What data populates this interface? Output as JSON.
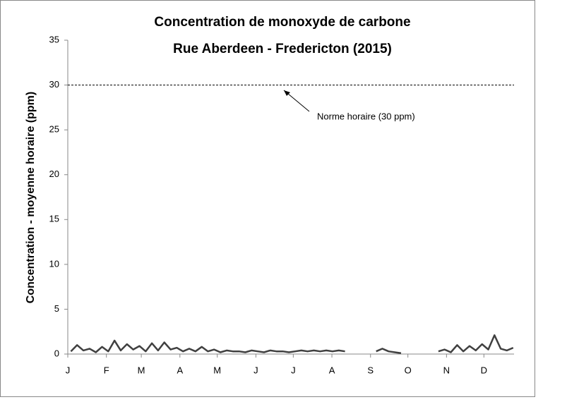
{
  "chart_data": {
    "type": "line",
    "title": [
      "Concentration de monoxyde de carbone",
      "Rue Aberdeen - Fredericton (2015)"
    ],
    "y_label": "Concentration - moyenne horaire (ppm)",
    "xlim": [
      0,
      365
    ],
    "xticks": [
      {
        "value": 0,
        "label": "J"
      },
      {
        "value": 31,
        "label": "F"
      },
      {
        "value": 59,
        "label": "M"
      },
      {
        "value": 90,
        "label": "A"
      },
      {
        "value": 120,
        "label": "M"
      },
      {
        "value": 151,
        "label": "J"
      },
      {
        "value": 181,
        "label": "J"
      },
      {
        "value": 212,
        "label": "A"
      },
      {
        "value": 243,
        "label": "S"
      },
      {
        "value": 273,
        "label": "O"
      },
      {
        "value": 304,
        "label": "N"
      },
      {
        "value": 334,
        "label": "D"
      }
    ],
    "ylim": [
      0,
      35
    ],
    "yticks": [
      0,
      5,
      10,
      15,
      20,
      25,
      30,
      35
    ],
    "reference_line": {
      "value": 30,
      "label": "Norme horaire (30 ppm)"
    },
    "series": [
      {
        "color": "#404040",
        "values": [
          0.3,
          1.0,
          0.4,
          0.6,
          0.2,
          0.8,
          0.3,
          1.5,
          0.4,
          1.1,
          0.5,
          0.9,
          0.3,
          1.2,
          0.4,
          1.3,
          0.5,
          0.7,
          0.3,
          0.6,
          0.3,
          0.8,
          0.3,
          0.5,
          0.2,
          0.4,
          0.3,
          0.3,
          0.2,
          0.4,
          0.3,
          0.2,
          0.4,
          0.3,
          0.3,
          0.2,
          0.3,
          0.4,
          0.3,
          0.4,
          0.3,
          0.4,
          0.3,
          0.4,
          0.3,
          null,
          null,
          null,
          null,
          0.3,
          0.6,
          0.3,
          0.2,
          0.1,
          null,
          null,
          null,
          null,
          null,
          0.3,
          0.5,
          0.2,
          1.0,
          0.3,
          0.9,
          0.4,
          1.1,
          0.5,
          2.1,
          0.6,
          0.4,
          0.7,
          null
        ]
      }
    ]
  }
}
